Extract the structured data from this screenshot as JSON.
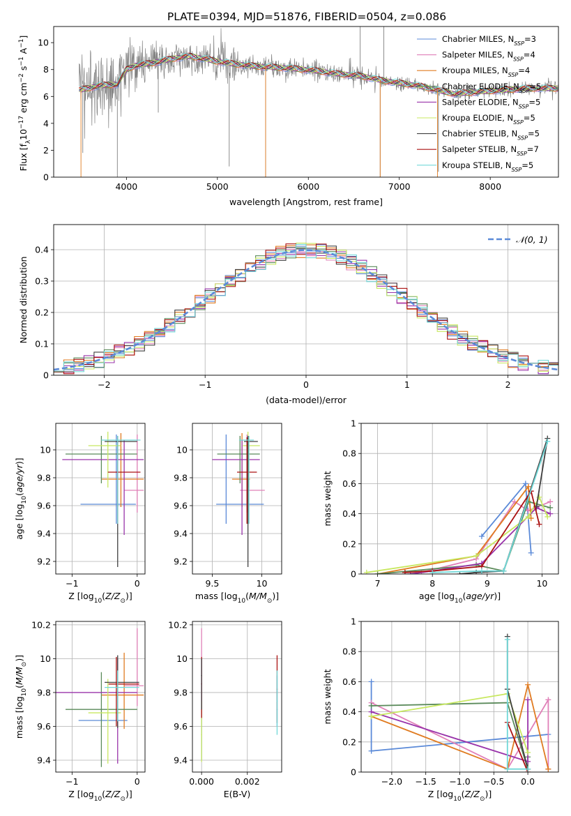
{
  "figure_title": "PLATE=0394, MJD=51876, FIBERID=0504, z=0.086",
  "colors": {
    "Chabrier MILES": "#5b8ad8",
    "Salpeter MILES": "#e080b8",
    "Kroupa MILES": "#e07b20",
    "Chabrier ELODIE": "#5a8a5a",
    "Salpeter ELODIE": "#9933aa",
    "Kroupa ELODIE": "#c8e860",
    "Chabrier STELIB": "#404040",
    "Salpeter STELIB": "#aa1111",
    "Kroupa STELIB": "#70d8d8",
    "data": "#808080",
    "normal": "#5b8ad8",
    "grid": "#b0b0b0"
  },
  "chart_data": [
    {
      "id": "spectrum",
      "type": "line",
      "title": "PLATE=0394, MJD=51876, FIBERID=0504, z=0.086",
      "xlabel": "wavelength [Angstrom, rest frame]",
      "ylabel": "Flux [f_λ 10^-17 erg cm^-2 s^-1 A^-1]",
      "xlim": [
        3200,
        8750
      ],
      "ylim": [
        0,
        11.2
      ],
      "xticks": [
        4000,
        5000,
        6000,
        7000,
        8000
      ],
      "yticks": [
        0,
        2,
        4,
        6,
        8,
        10
      ],
      "grid": false,
      "legend_position": "upper-right",
      "legend": [
        {
          "name": "Chabrier MILES",
          "nssp": "3"
        },
        {
          "name": "Salpeter MILES",
          "nssp": "4"
        },
        {
          "name": "Kroupa MILES",
          "nssp": "4"
        },
        {
          "name": "Chabrier ELODIE",
          "nssp": "5"
        },
        {
          "name": "Salpeter ELODIE",
          "nssp": "5"
        },
        {
          "name": "Kroupa ELODIE",
          "nssp": "5"
        },
        {
          "name": "Chabrier STELIB",
          "nssp": "5"
        },
        {
          "name": "Salpeter STELIB",
          "nssp": "7"
        },
        {
          "name": "Kroupa STELIB",
          "nssp": "5"
        }
      ],
      "model_continuum": {
        "x": [
          3500,
          3700,
          3900,
          4000,
          4100,
          4300,
          4500,
          4700,
          5000,
          5200,
          5500,
          5800,
          6100,
          6300,
          6600,
          6800,
          7000,
          7200,
          7400,
          7600,
          8000,
          8400
        ],
        "y": [
          6.5,
          6.8,
          6.9,
          8.0,
          8.3,
          8.5,
          8.8,
          9.0,
          8.6,
          8.4,
          8.2,
          8.1,
          7.9,
          7.7,
          7.5,
          7.2,
          7.0,
          6.8,
          6.5,
          6.2,
          6.4,
          6.6
        ]
      },
      "data_spikes": [
        {
          "x": 3520,
          "y": 1.8
        },
        {
          "x": 3900,
          "y": 0.0
        },
        {
          "x": 4350,
          "y": 4.8
        },
        {
          "x": 5130,
          "y": 0.8
        },
        {
          "x": 5530,
          "y": 0.0
        },
        {
          "x": 6790,
          "y": 0.0
        },
        {
          "x": 6570,
          "y": 11.2
        },
        {
          "x": 6830,
          "y": 11.2
        },
        {
          "x": 7430,
          "y": 0.4
        }
      ]
    },
    {
      "id": "residuals",
      "type": "line",
      "xlabel": "(data-model)/error",
      "ylabel": "Normed distribution",
      "xlim": [
        -2.5,
        2.5
      ],
      "ylim": [
        0,
        0.48
      ],
      "xticks": [
        -2,
        -1,
        0,
        1,
        2
      ],
      "yticks": [
        0.0,
        0.1,
        0.2,
        0.3,
        0.4
      ],
      "grid": true,
      "legend_position": "upper-right",
      "normal_label": "𝒩(0, 1)",
      "bin_width": 0.1
    },
    {
      "id": "age_vs_Z",
      "type": "scatter",
      "xlabel": "Z [log10(Z/Z⊙)]",
      "ylabel": "age [log10(age/yr)]",
      "xlim": [
        -1.25,
        0.12
      ],
      "ylim": [
        9.11,
        10.19
      ],
      "xticks": [
        -1,
        0
      ],
      "yticks": [
        9.2,
        9.4,
        9.6,
        9.8,
        10.0
      ],
      "grid": true,
      "points": [
        {
          "model": "Chabrier MILES",
          "x": -0.32,
          "y": 9.61,
          "xerr": [
            0.55,
            0.3
          ],
          "yerr": [
            0.14,
            0.5
          ]
        },
        {
          "model": "Salpeter MILES",
          "x": 0.0,
          "y": 9.71,
          "xerr": [
            0.2,
            0.1
          ],
          "yerr": [
            0.16,
            0.4
          ]
        },
        {
          "model": "Kroupa MILES",
          "x": -0.25,
          "y": 9.79,
          "xerr": [
            0.3,
            0.35
          ],
          "yerr": [
            0.2,
            0.33
          ]
        },
        {
          "model": "Chabrier ELODIE",
          "x": -0.55,
          "y": 9.97,
          "xerr": [
            0.55,
            0.55
          ],
          "yerr": [
            0.21,
            0.13
          ]
        },
        {
          "model": "Salpeter ELODIE",
          "x": -0.2,
          "y": 9.93,
          "xerr": [
            0.95,
            0.3
          ],
          "yerr": [
            0.54,
            0.14
          ]
        },
        {
          "model": "Kroupa ELODIE",
          "x": -0.45,
          "y": 10.03,
          "xerr": [
            0.3,
            0.2
          ],
          "yerr": [
            0.3,
            0.1
          ]
        },
        {
          "model": "Chabrier STELIB",
          "x": -0.3,
          "y": 10.06,
          "xerr": [
            0.2,
            0.3
          ],
          "yerr": [
            0.9,
            0.04
          ]
        },
        {
          "model": "Salpeter STELIB",
          "x": -0.3,
          "y": 9.84,
          "xerr": [
            0.15,
            0.35
          ],
          "yerr": [
            0.37,
            0.25
          ]
        },
        {
          "model": "Kroupa STELIB",
          "x": -0.3,
          "y": 10.07,
          "xerr": [
            0.25,
            0.35
          ],
          "yerr": [
            0.6,
            0.03
          ]
        }
      ]
    },
    {
      "id": "age_vs_mass",
      "type": "scatter",
      "xlabel": "mass [log10(M/M⊙)]",
      "ylabel": "",
      "xlim": [
        9.3,
        10.2
      ],
      "ylim": [
        9.11,
        10.19
      ],
      "xticks": [
        9.5,
        10.0
      ],
      "yticks": [
        9.2,
        9.4,
        9.6,
        9.8,
        10.0
      ],
      "grid": true,
      "points": [
        {
          "model": "Chabrier MILES",
          "x": 9.64,
          "y": 9.61,
          "xerr": [
            0.1,
            0.38
          ],
          "yerr": [
            0.14,
            0.5
          ]
        },
        {
          "model": "Salpeter MILES",
          "x": 9.85,
          "y": 9.71,
          "xerr": [
            0.07,
            0.18
          ],
          "yerr": [
            0.16,
            0.4
          ]
        },
        {
          "model": "Kroupa MILES",
          "x": 9.8,
          "y": 9.79,
          "xerr": [
            0.1,
            0.08
          ],
          "yerr": [
            0.2,
            0.33
          ]
        },
        {
          "model": "Chabrier ELODIE",
          "x": 9.78,
          "y": 9.97,
          "xerr": [
            0.23,
            0.2
          ],
          "yerr": [
            0.21,
            0.13
          ]
        },
        {
          "model": "Salpeter ELODIE",
          "x": 9.8,
          "y": 9.93,
          "xerr": [
            0.3,
            0.18
          ],
          "yerr": [
            0.54,
            0.14
          ]
        },
        {
          "model": "Kroupa ELODIE",
          "x": 9.86,
          "y": 10.03,
          "xerr": [
            0.05,
            0.12
          ],
          "yerr": [
            0.3,
            0.1
          ]
        },
        {
          "model": "Chabrier STELIB",
          "x": 9.86,
          "y": 10.06,
          "xerr": [
            0.04,
            0.1
          ],
          "yerr": [
            0.9,
            0.04
          ]
        },
        {
          "model": "Salpeter STELIB",
          "x": 9.85,
          "y": 9.84,
          "xerr": [
            0.1,
            0.1
          ],
          "yerr": [
            0.37,
            0.25
          ]
        },
        {
          "model": "Kroupa STELIB",
          "x": 9.87,
          "y": 10.07,
          "xerr": [
            0.1,
            0.05
          ],
          "yerr": [
            0.6,
            0.03
          ]
        }
      ]
    },
    {
      "id": "mass_weight_vs_age",
      "type": "line",
      "xlabel": "age [log10(age/yr)]",
      "ylabel": "mass weight",
      "xlim": [
        6.7,
        10.3
      ],
      "ylim": [
        0,
        1
      ],
      "xticks": [
        7,
        8,
        9,
        10
      ],
      "yticks": [
        0.0,
        0.2,
        0.4,
        0.6,
        0.8,
        1.0
      ],
      "grid": true,
      "series": [
        {
          "name": "Chabrier MILES",
          "x": [
            8.9,
            9.7,
            9.8
          ],
          "y": [
            0.25,
            0.6,
            0.14
          ]
        },
        {
          "name": "Salpeter MILES",
          "x": [
            7.8,
            8.8,
            9.5,
            9.75,
            10.15
          ],
          "y": [
            0.01,
            0.1,
            0.48,
            0.42,
            0.48
          ]
        },
        {
          "name": "Kroupa MILES",
          "x": [
            7.0,
            8.8,
            9.75,
            9.8
          ],
          "y": [
            0.0,
            0.12,
            0.58,
            0.37
          ]
        },
        {
          "name": "Chabrier ELODIE",
          "x": [
            7.0,
            8.8,
            9.3,
            9.75,
            10.15
          ],
          "y": [
            0.0,
            0.06,
            0.02,
            0.48,
            0.44
          ]
        },
        {
          "name": "Salpeter ELODIE",
          "x": [
            7.6,
            8.0,
            8.9,
            9.9,
            10.15
          ],
          "y": [
            0.0,
            0.02,
            0.07,
            0.44,
            0.4
          ]
        },
        {
          "name": "Kroupa ELODIE",
          "x": [
            6.8,
            8.8,
            9.75,
            9.95,
            10.1
          ],
          "y": [
            0.01,
            0.12,
            0.38,
            0.51,
            0.38
          ]
        },
        {
          "name": "Chabrier STELIB",
          "x": [
            8.5,
            8.8,
            9.3,
            10.1,
            9.9
          ],
          "y": [
            0.0,
            0.01,
            0.02,
            0.9,
            0.45
          ]
        },
        {
          "name": "Salpeter STELIB",
          "x": [
            7.5,
            8.0,
            8.9,
            9.8,
            9.95
          ],
          "y": [
            0.01,
            0.02,
            0.05,
            0.55,
            0.33
          ]
        },
        {
          "name": "Kroupa STELIB",
          "x": [
            8.0,
            8.9,
            9.3,
            10.1
          ],
          "y": [
            0.01,
            0.02,
            0.02,
            0.88
          ]
        }
      ]
    },
    {
      "id": "mass_vs_Z",
      "type": "scatter",
      "xlabel": "Z [log10(Z/Z⊙)]",
      "ylabel": "mass [log10(M/M⊙)]",
      "xlim": [
        -1.25,
        0.12
      ],
      "ylim": [
        9.33,
        10.22
      ],
      "xticks": [
        -1,
        0
      ],
      "yticks": [
        9.4,
        9.6,
        9.8,
        10.0,
        10.2
      ],
      "grid": true,
      "points": [
        {
          "model": "Chabrier MILES",
          "x": -0.45,
          "y": 9.635,
          "xerr": [
            0.45,
            0.3
          ],
          "yerr": [
            0.0,
            0.0
          ]
        },
        {
          "model": "Salpeter MILES",
          "x": 0.0,
          "y": 9.84,
          "xerr": [
            0.2,
            0.1
          ],
          "yerr": [
            0.12,
            0.34
          ]
        },
        {
          "model": "Kroupa MILES",
          "x": -0.2,
          "y": 9.785,
          "xerr": [
            0.35,
            0.3
          ],
          "yerr": [
            0.2,
            0.25
          ]
        },
        {
          "model": "Chabrier ELODIE",
          "x": -0.55,
          "y": 9.7,
          "xerr": [
            0.55,
            0.55
          ],
          "yerr": [
            0.34,
            0.22
          ]
        },
        {
          "model": "Salpeter ELODIE",
          "x": -0.3,
          "y": 9.8,
          "xerr": [
            0.95,
            0.3
          ],
          "yerr": [
            0.42,
            0.2
          ]
        },
        {
          "model": "Kroupa ELODIE",
          "x": -0.45,
          "y": 9.68,
          "xerr": [
            0.3,
            0.2
          ],
          "yerr": [
            0.3,
            0.2
          ]
        },
        {
          "model": "Chabrier STELIB",
          "x": -0.3,
          "y": 9.86,
          "xerr": [
            0.2,
            0.33
          ],
          "yerr": [
            0.27,
            0.16
          ]
        },
        {
          "model": "Salpeter STELIB",
          "x": -0.32,
          "y": 9.85,
          "xerr": [
            0.12,
            0.35
          ],
          "yerr": [
            0.25,
            0.16
          ]
        },
        {
          "model": "Kroupa STELIB",
          "x": -0.3,
          "y": 9.83,
          "xerr": [
            0.2,
            0.33
          ],
          "yerr": [
            0.2,
            0.1
          ]
        }
      ]
    },
    {
      "id": "mass_vs_ebv",
      "type": "scatter",
      "xlabel": "E(B-V)",
      "ylabel": "",
      "xlim": [
        -0.0004,
        0.0035
      ],
      "ylim": [
        9.33,
        10.22
      ],
      "xticks": [
        0.0,
        0.002
      ],
      "xtick_labels": [
        "0.000",
        "0.002"
      ],
      "yticks": [
        9.4,
        9.6,
        9.8,
        10.0,
        10.2
      ],
      "grid": true,
      "points": [
        {
          "model": "Chabrier MILES",
          "x": 0.0,
          "y": 9.7,
          "yerr": [
            0.3,
            0.3
          ]
        },
        {
          "model": "Salpeter MILES",
          "x": 0.0,
          "y": 9.85,
          "yerr": [
            0.1,
            0.33
          ]
        },
        {
          "model": "Kroupa ELODIE",
          "x": 0.0,
          "y": 9.55,
          "yerr": [
            0.16,
            0.2
          ]
        },
        {
          "model": "Salpeter STELIB",
          "x": 0.0,
          "y": 9.85,
          "yerr": [
            0.2,
            0.16
          ]
        },
        {
          "model": "Chabrier STELIB",
          "x": 0.0,
          "y": 9.9,
          "yerr": [
            0.2,
            0.1
          ]
        },
        {
          "model": "Chabrier MILES",
          "x": 0.0033,
          "y": 9.7,
          "yerr": [
            0.1,
            0.2
          ]
        },
        {
          "model": "Salpeter STELIB",
          "x": 0.0033,
          "y": 9.82,
          "yerr": [
            0.2,
            0.2
          ]
        },
        {
          "model": "Kroupa STELIB",
          "x": 0.0033,
          "y": 9.75,
          "yerr": [
            0.2,
            0.18
          ]
        }
      ]
    },
    {
      "id": "mass_weight_vs_Z",
      "type": "line",
      "xlabel": "Z [log10(Z/Z⊙)]",
      "ylabel": "mass weight",
      "xlim": [
        -2.45,
        0.45
      ],
      "ylim": [
        0,
        1
      ],
      "xticks": [
        -2.0,
        -1.5,
        -1.0,
        -0.5,
        0.0
      ],
      "xtick_labels": [
        "−2.0",
        "−1.5",
        "−1.0",
        "−0.5",
        "0.0"
      ],
      "yticks": [
        0.0,
        0.2,
        0.4,
        0.6,
        0.8,
        1.0
      ],
      "grid": true,
      "series": [
        {
          "name": "Chabrier MILES",
          "x": [
            -2.3,
            -2.3,
            0.3
          ],
          "y": [
            0.6,
            0.14,
            0.25
          ]
        },
        {
          "name": "Salpeter MILES",
          "x": [
            -2.3,
            -0.3,
            0.3,
            0.3
          ],
          "y": [
            0.46,
            0.02,
            0.48,
            0.02
          ]
        },
        {
          "name": "Kroupa MILES",
          "x": [
            -2.3,
            -0.3,
            0.0,
            0.3
          ],
          "y": [
            0.37,
            0.02,
            0.58,
            0.02
          ]
        },
        {
          "name": "Chabrier ELODIE",
          "x": [
            -2.3,
            -0.3,
            0.0,
            0.0
          ],
          "y": [
            0.44,
            0.46,
            0.02,
            0.1
          ]
        },
        {
          "name": "Salpeter ELODIE",
          "x": [
            -2.3,
            0.0,
            0.0
          ],
          "y": [
            0.4,
            0.07,
            0.48
          ]
        },
        {
          "name": "Kroupa ELODIE",
          "x": [
            -2.3,
            -0.3,
            0.0
          ],
          "y": [
            0.37,
            0.52,
            0.13
          ]
        },
        {
          "name": "Chabrier STELIB",
          "x": [
            -0.3,
            -0.3,
            0.0
          ],
          "y": [
            0.9,
            0.55,
            0.02
          ]
        },
        {
          "name": "Salpeter STELIB",
          "x": [
            -0.3,
            0.0
          ],
          "y": [
            0.33,
            0.0
          ]
        },
        {
          "name": "Kroupa STELIB",
          "x": [
            -0.3,
            -0.3,
            0.0
          ],
          "y": [
            0.88,
            0.02,
            0.02
          ]
        }
      ]
    }
  ]
}
